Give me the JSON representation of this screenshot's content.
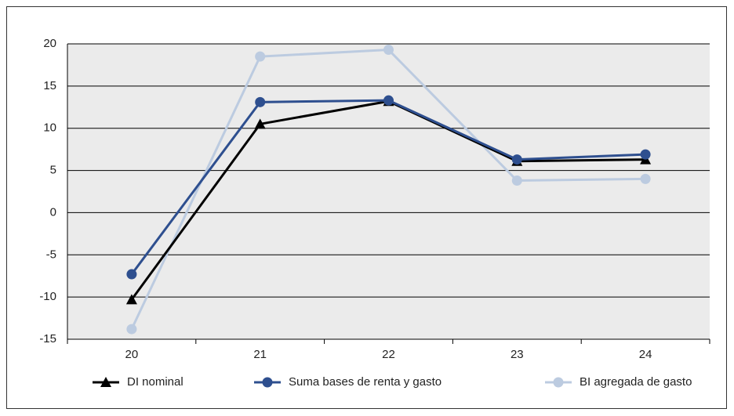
{
  "chart_data": {
    "type": "line",
    "categories": [
      "20",
      "21",
      "22",
      "23",
      "24"
    ],
    "series": [
      {
        "name": "BI agregada de gasto",
        "color": "#bccbe0",
        "marker": "circle",
        "values": [
          -13.8,
          18.5,
          19.3,
          3.8,
          4.0
        ]
      },
      {
        "name": "DI nominal",
        "color": "#000000",
        "marker": "triangle",
        "values": [
          -10.3,
          10.5,
          13.2,
          6.1,
          6.3
        ]
      },
      {
        "name": "Suma bases de renta y gasto",
        "color": "#2e4f8f",
        "marker": "circle",
        "values": [
          -7.3,
          13.1,
          13.3,
          6.3,
          6.9
        ]
      }
    ],
    "legend_order": [
      1,
      2,
      0
    ],
    "ylim": [
      -15,
      20
    ],
    "yticks": [
      -15,
      -10,
      -5,
      0,
      5,
      10,
      15,
      20
    ],
    "grid": true
  }
}
